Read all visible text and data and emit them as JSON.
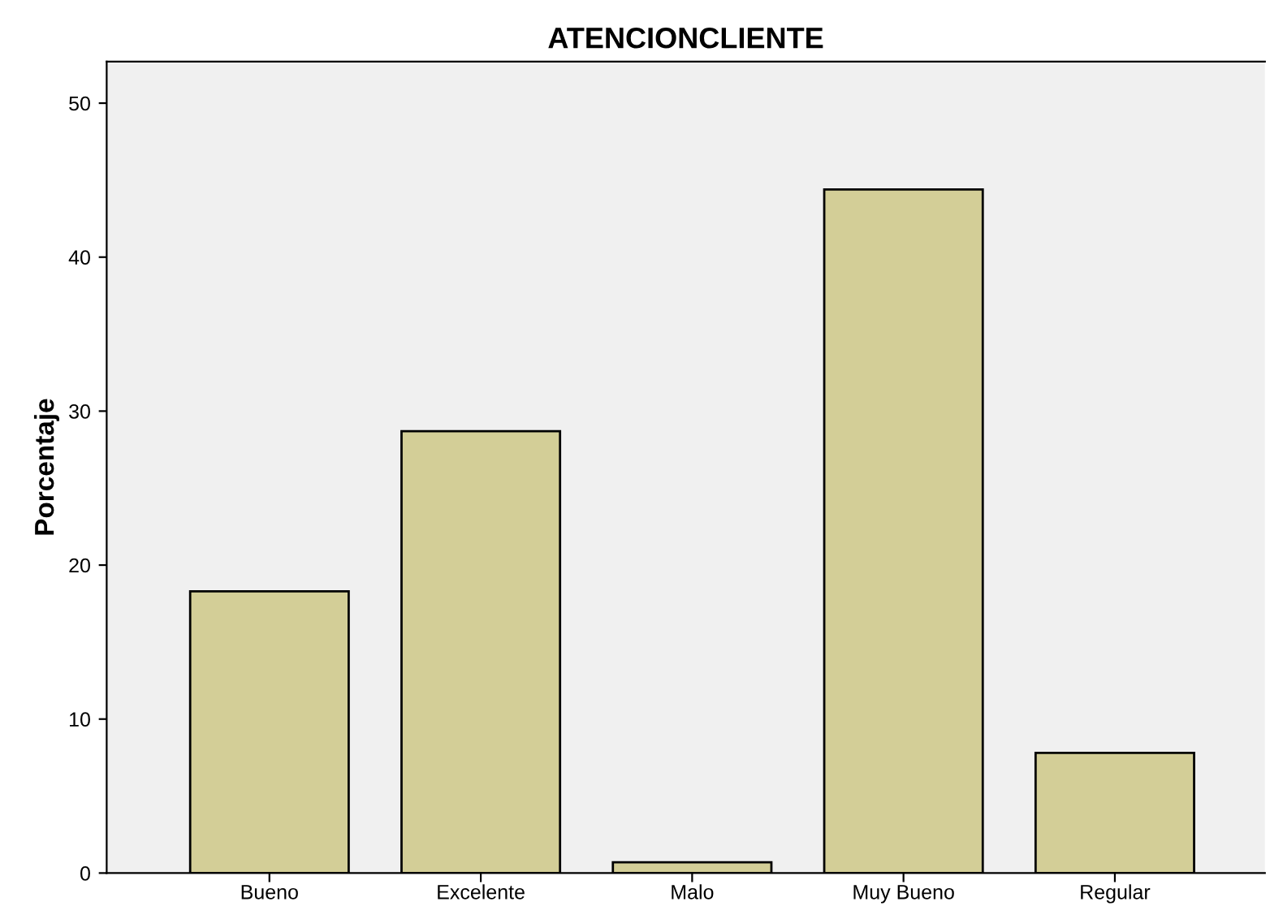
{
  "chart_data": {
    "type": "bar",
    "title": "ATENCIONCLIENTE",
    "ylabel": "Porcentaje",
    "categories": [
      "Bueno",
      "Excelente",
      "Malo",
      "Muy Bueno",
      "Regular"
    ],
    "values": [
      18.3,
      28.7,
      0.7,
      44.4,
      7.8
    ],
    "color": "#d3ce97",
    "ylim": [
      0,
      52.7
    ],
    "yticks": [
      0,
      10,
      20,
      30,
      40,
      50
    ],
    "grid": false,
    "legend": false
  }
}
